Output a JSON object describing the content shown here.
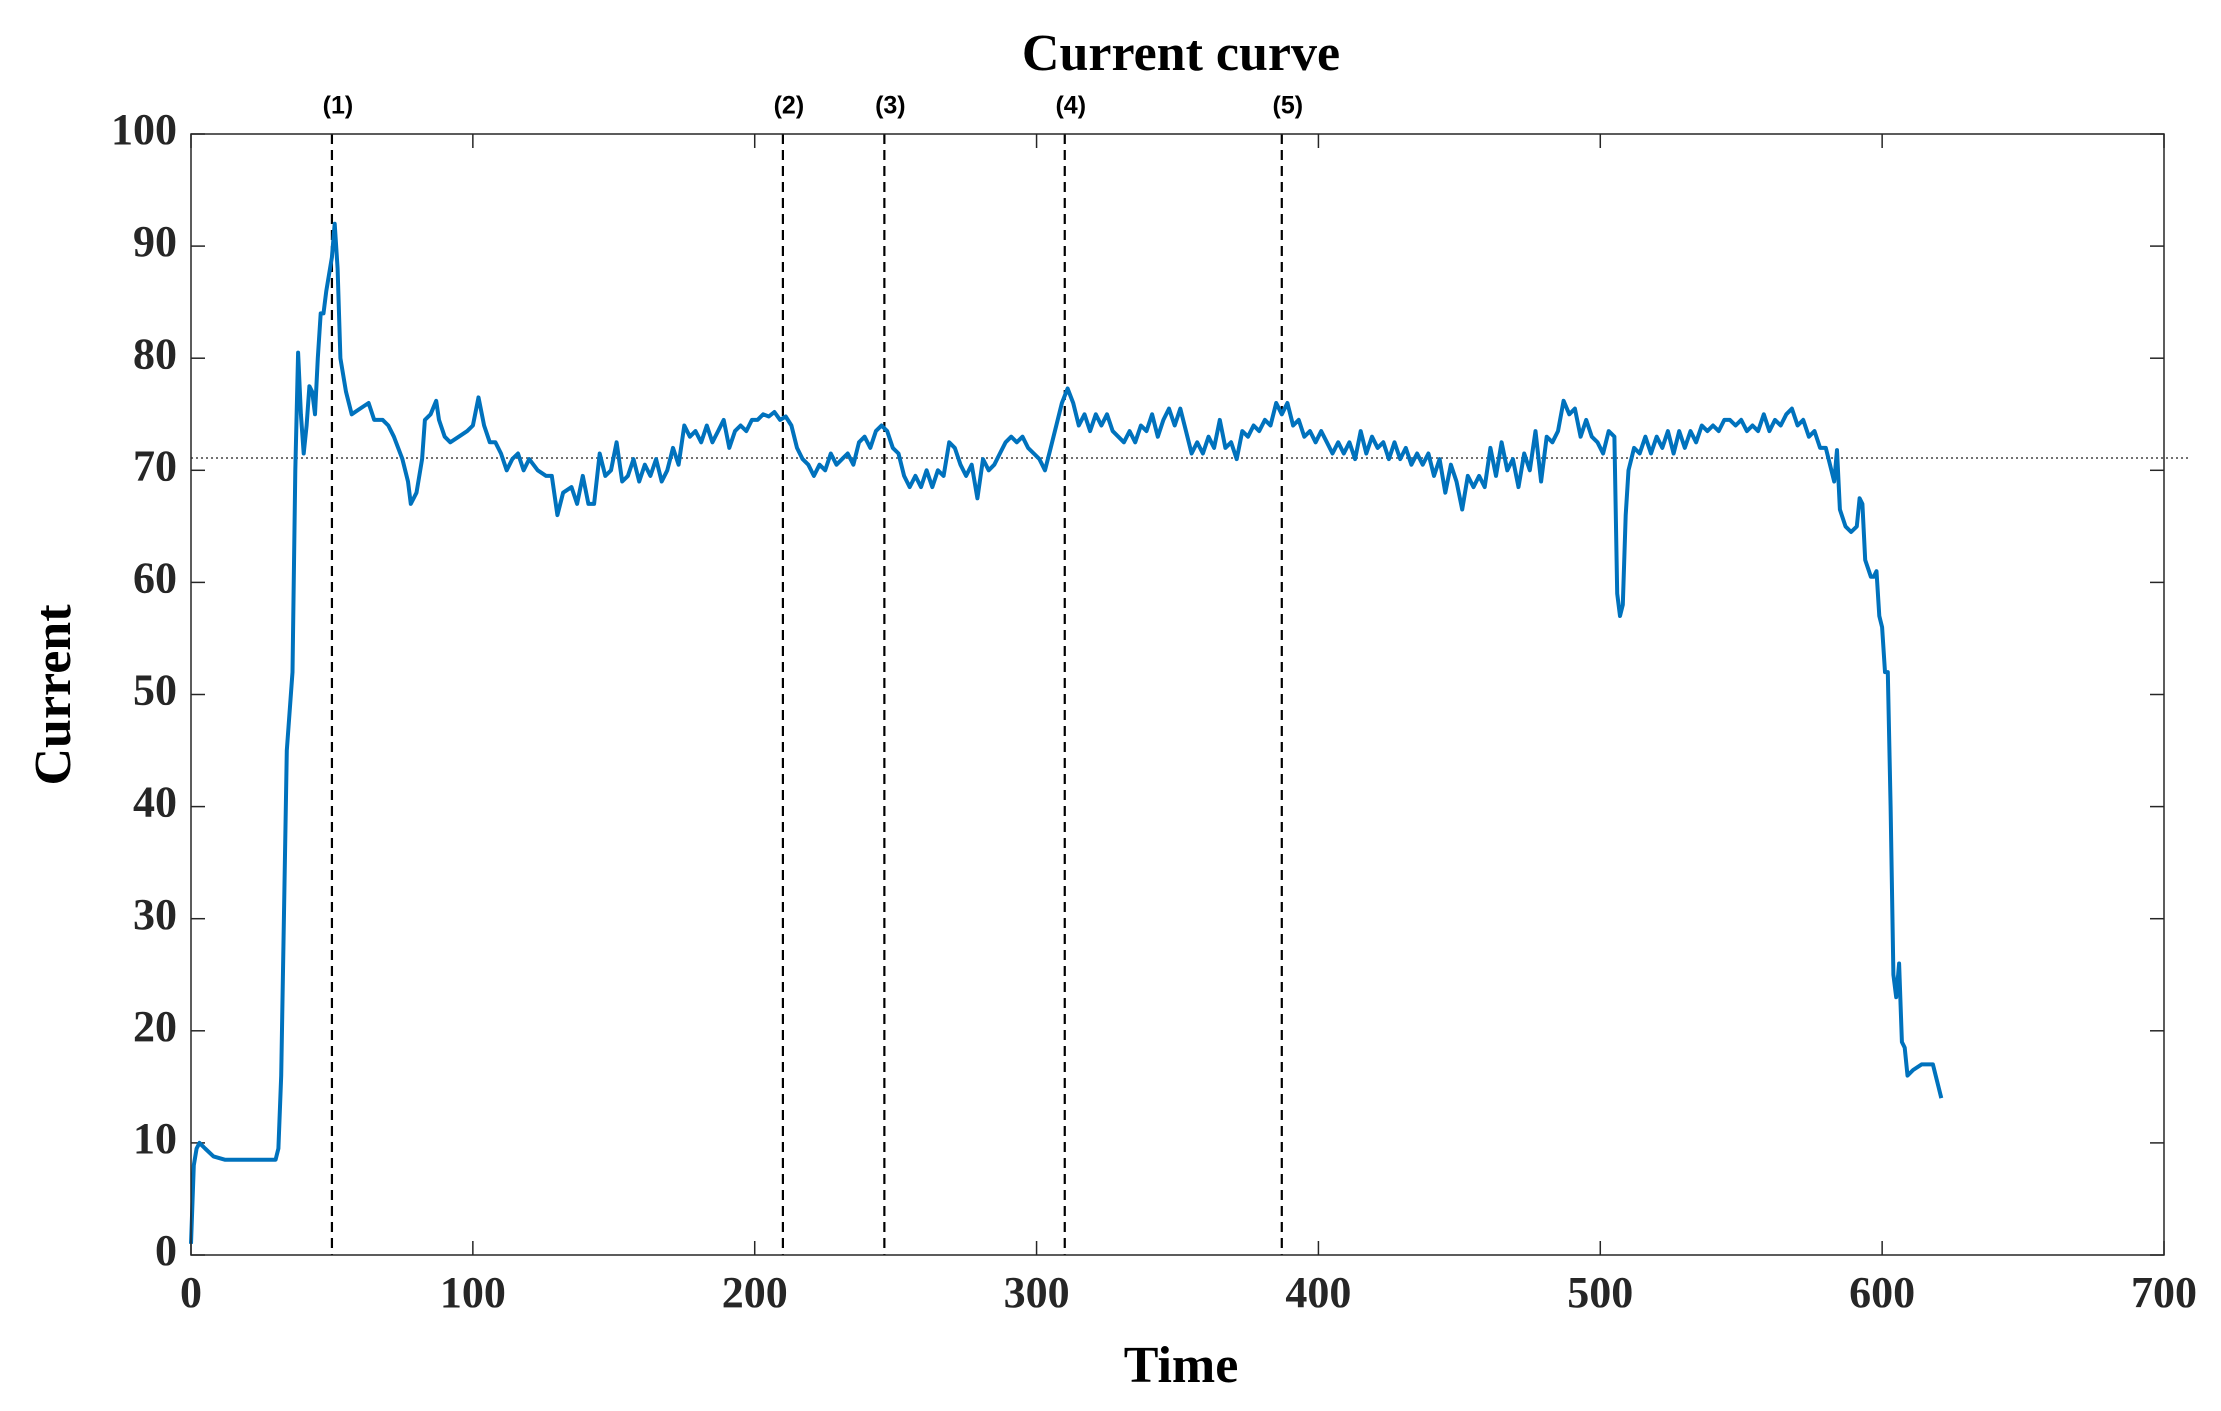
{
  "chart_data": {
    "type": "line",
    "title": "Current curve",
    "x_label": "Time",
    "y_label": "Current",
    "xlim": [
      0,
      700
    ],
    "xticks": [
      0,
      100,
      200,
      300,
      400,
      500,
      600,
      700
    ],
    "ylim": [
      0,
      100
    ],
    "yticks": [
      0,
      10,
      20,
      30,
      40,
      50,
      60,
      70,
      80,
      90,
      100
    ],
    "reference_line": 71.1,
    "markers": [
      {
        "x": 50,
        "label": "(1)"
      },
      {
        "x": 210,
        "label": "(2)"
      },
      {
        "x": 246,
        "label": "(3)"
      },
      {
        "x": 310,
        "label": "(4)"
      },
      {
        "x": 387,
        "label": "(5)"
      }
    ],
    "series": [
      {
        "color": "#0072bd",
        "x": [
          0,
          1,
          2,
          3,
          5,
          8,
          12,
          20,
          30,
          31,
          32,
          34,
          36,
          37,
          38,
          39,
          40,
          41,
          42,
          43,
          44,
          45,
          46,
          47,
          48,
          50,
          51,
          52,
          53,
          55,
          57,
          60,
          63,
          65,
          68,
          70,
          72,
          75,
          77,
          78,
          80,
          82,
          83,
          85,
          87,
          88,
          90,
          92,
          95,
          98,
          100,
          102,
          104,
          106,
          108,
          110,
          112,
          114,
          116,
          118,
          120,
          123,
          126,
          128,
          130,
          132,
          135,
          137,
          139,
          141,
          143,
          145,
          147,
          149,
          151,
          153,
          155,
          157,
          159,
          161,
          163,
          165,
          167,
          169,
          171,
          173,
          175,
          177,
          179,
          181,
          183,
          185,
          187,
          189,
          191,
          193,
          195,
          197,
          199,
          201,
          203,
          205,
          207,
          209,
          211,
          213,
          215,
          217,
          219,
          221,
          223,
          225,
          227,
          229,
          231,
          233,
          235,
          237,
          239,
          241,
          243,
          245,
          247,
          249,
          251,
          253,
          255,
          257,
          259,
          261,
          263,
          265,
          267,
          269,
          271,
          273,
          275,
          277,
          279,
          281,
          283,
          285,
          287,
          289,
          291,
          293,
          295,
          297,
          299,
          301,
          303,
          305,
          307,
          309,
          311,
          313,
          315,
          317,
          319,
          321,
          323,
          325,
          327,
          329,
          331,
          333,
          335,
          337,
          339,
          341,
          343,
          345,
          347,
          349,
          351,
          353,
          355,
          357,
          359,
          361,
          363,
          365,
          367,
          369,
          371,
          373,
          375,
          377,
          379,
          381,
          383,
          385,
          387,
          389,
          391,
          393,
          395,
          397,
          399,
          401,
          403,
          405,
          407,
          409,
          411,
          413,
          415,
          417,
          419,
          421,
          423,
          425,
          427,
          429,
          431,
          433,
          435,
          437,
          439,
          441,
          443,
          445,
          447,
          449,
          451,
          453,
          455,
          457,
          459,
          461,
          463,
          465,
          467,
          469,
          471,
          473,
          475,
          477,
          479,
          481,
          483,
          485,
          487,
          489,
          491,
          493,
          495,
          497,
          499,
          501,
          503,
          505,
          506,
          507,
          508,
          509,
          510,
          512,
          514,
          516,
          518,
          520,
          522,
          524,
          526,
          528,
          530,
          532,
          534,
          536,
          538,
          540,
          542,
          544,
          546,
          548,
          550,
          552,
          554,
          556,
          558,
          560,
          562,
          564,
          566,
          568,
          570,
          572,
          574,
          576,
          578,
          580,
          582,
          583,
          584,
          585,
          587,
          589,
          591,
          592,
          593,
          594,
          596,
          597,
          598,
          599,
          600,
          601,
          602,
          603,
          604,
          605,
          606,
          607,
          608,
          609,
          611,
          614,
          617,
          618,
          619,
          620,
          621
        ],
        "values": [
          1,
          8,
          9.5,
          10,
          9.5,
          8.8,
          8.5,
          8.5,
          8.5,
          9.5,
          16,
          45,
          52,
          70,
          80.5,
          75,
          71.5,
          74,
          77.5,
          77,
          75,
          80,
          84,
          84,
          86,
          89,
          92,
          88,
          80,
          77,
          75,
          75.5,
          76,
          74.5,
          74.5,
          74,
          73,
          71,
          69,
          67,
          68,
          71,
          74.5,
          75,
          76.2,
          74.5,
          73,
          72.5,
          73,
          73.5,
          74,
          76.5,
          74,
          72.5,
          72.5,
          71.5,
          70,
          71,
          71.5,
          70,
          71,
          70,
          69.5,
          69.5,
          66,
          68,
          68.5,
          67,
          69.5,
          67,
          67,
          71.5,
          69.5,
          70,
          72.5,
          69,
          69.5,
          71,
          69,
          70.5,
          69.5,
          71,
          69,
          70,
          72,
          70.5,
          74,
          73,
          73.5,
          72.5,
          74,
          72.5,
          73.5,
          74.5,
          72,
          73.5,
          74,
          73.5,
          74.5,
          74.5,
          75,
          74.8,
          75.2,
          74.5,
          74.8,
          74,
          72,
          71,
          70.5,
          69.5,
          70.5,
          70,
          71.5,
          70.5,
          71,
          71.5,
          70.5,
          72.5,
          73,
          72,
          73.5,
          74,
          73.5,
          72,
          71.5,
          69.5,
          68.5,
          69.5,
          68.5,
          70,
          68.5,
          70,
          69.5,
          72.5,
          72,
          70.5,
          69.5,
          70.5,
          67.5,
          71,
          70,
          70.5,
          71.5,
          72.5,
          73,
          72.5,
          73,
          72,
          71.5,
          71,
          70,
          72,
          74,
          76,
          77.3,
          76,
          74,
          75,
          73.5,
          75,
          74,
          75,
          73.5,
          73,
          72.5,
          73.5,
          72.5,
          74,
          73.5,
          75,
          73,
          74.5,
          75.5,
          74,
          75.5,
          73.5,
          71.5,
          72.5,
          71.5,
          73,
          72,
          74.5,
          72,
          72.5,
          71,
          73.5,
          73,
          74,
          73.5,
          74.5,
          74,
          76,
          75,
          76,
          74,
          74.5,
          73,
          73.5,
          72.5,
          73.5,
          72.5,
          71.5,
          72.5,
          71.5,
          72.5,
          71,
          73.5,
          71.5,
          73,
          72,
          72.5,
          71,
          72.5,
          71,
          72,
          70.5,
          71.5,
          70.5,
          71.5,
          69.5,
          71,
          68,
          70.5,
          69,
          66.5,
          69.5,
          68.5,
          69.5,
          68.5,
          72,
          69.5,
          72.5,
          70,
          71,
          68.5,
          71.5,
          70,
          73.5,
          69,
          73,
          72.5,
          73.5,
          76.2,
          75,
          75.5,
          73,
          74.5,
          73,
          72.5,
          71.5,
          73.5,
          73,
          59,
          57,
          58,
          66,
          70,
          72,
          71.5,
          73,
          71.5,
          73,
          72,
          73.5,
          71.5,
          73.5,
          72,
          73.5,
          72.5,
          74,
          73.5,
          74,
          73.5,
          74.5,
          74.5,
          74,
          74.5,
          73.5,
          74,
          73.5,
          75,
          73.5,
          74.5,
          74,
          75,
          75.5,
          74,
          74.5,
          73,
          73.5,
          72,
          72,
          70,
          69,
          71.8,
          66.5,
          65,
          64.5,
          65,
          67.5,
          67,
          62,
          60.5,
          60.5,
          61,
          57,
          56,
          52,
          52,
          40,
          25,
          23,
          26,
          19,
          18.5,
          16,
          16.5,
          17,
          17,
          17,
          16,
          15,
          14
        ]
      }
    ]
  }
}
